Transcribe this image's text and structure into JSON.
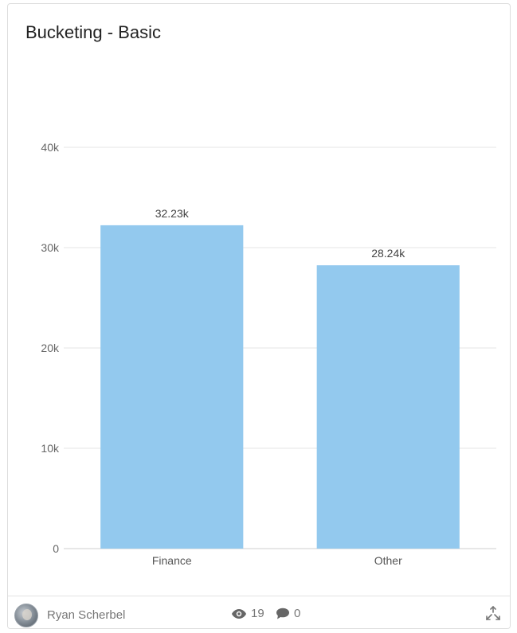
{
  "widget": {
    "title": "Bucketing - Basic"
  },
  "chart_data": {
    "type": "bar",
    "categories": [
      "Finance",
      "Other"
    ],
    "values": [
      32230,
      28240
    ],
    "data_labels": [
      "32.23k",
      "28.24k"
    ],
    "ylim": [
      0,
      40000
    ],
    "yticks": [
      0,
      10000,
      20000,
      30000,
      40000
    ],
    "ytick_labels": [
      "0",
      "10k",
      "20k",
      "30k",
      "40k"
    ],
    "bar_color": "#93c9ee",
    "grid": true
  },
  "footer": {
    "author": "Ryan Scherbel",
    "views": "19",
    "comments": "0",
    "icons": {
      "views": "eye-icon",
      "comments": "comment-icon",
      "expand": "expand-arrows-icon"
    }
  }
}
